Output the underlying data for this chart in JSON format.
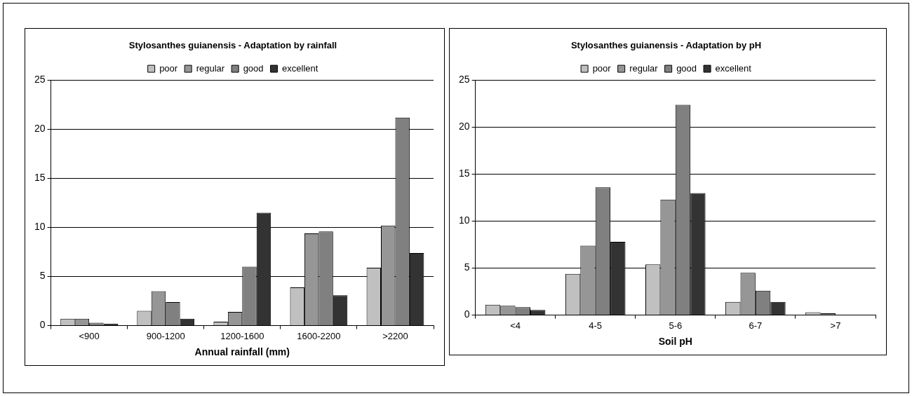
{
  "chart_data": [
    {
      "type": "bar",
      "title": "Stylosanthes guianensis - Adaptation by rainfall",
      "xlabel": "Annual rainfall (mm)",
      "categories": [
        "<900",
        "900-1200",
        "1200-1600",
        "1600-2200",
        ">2200"
      ],
      "series": [
        {
          "name": "poor",
          "color": "#c0c0c0",
          "values": [
            0.7,
            1.5,
            0.4,
            3.9,
            5.9
          ]
        },
        {
          "name": "regular",
          "color": "#969696",
          "values": [
            0.7,
            3.5,
            1.4,
            9.4,
            10.2
          ]
        },
        {
          "name": "good",
          "color": "#808080",
          "values": [
            0.3,
            2.4,
            6.0,
            9.6,
            21.2
          ]
        },
        {
          "name": "excellent",
          "color": "#333333",
          "values": [
            0.2,
            0.7,
            11.5,
            3.1,
            7.4
          ]
        }
      ],
      "ylim": [
        0,
        25
      ],
      "yticks": [
        0,
        5,
        10,
        15,
        20,
        25
      ],
      "grid": "y",
      "legend": "top"
    },
    {
      "type": "bar",
      "title": "Stylosanthes guianensis - Adaptation by pH",
      "xlabel": "Soil pH",
      "categories": [
        "<4",
        "4-5",
        "5-6",
        "6-7",
        ">7"
      ],
      "series": [
        {
          "name": "poor",
          "color": "#c0c0c0",
          "values": [
            1.1,
            4.4,
            5.4,
            1.4,
            0.3
          ]
        },
        {
          "name": "regular",
          "color": "#969696",
          "values": [
            1.0,
            7.4,
            12.3,
            4.5,
            0.2
          ]
        },
        {
          "name": "good",
          "color": "#808080",
          "values": [
            0.85,
            13.6,
            22.4,
            2.6,
            0
          ]
        },
        {
          "name": "excellent",
          "color": "#333333",
          "values": [
            0.55,
            7.8,
            13.0,
            1.4,
            0
          ]
        }
      ],
      "ylim": [
        0,
        25
      ],
      "yticks": [
        0,
        5,
        10,
        15,
        20,
        25
      ],
      "grid": "y",
      "legend": "top"
    }
  ]
}
